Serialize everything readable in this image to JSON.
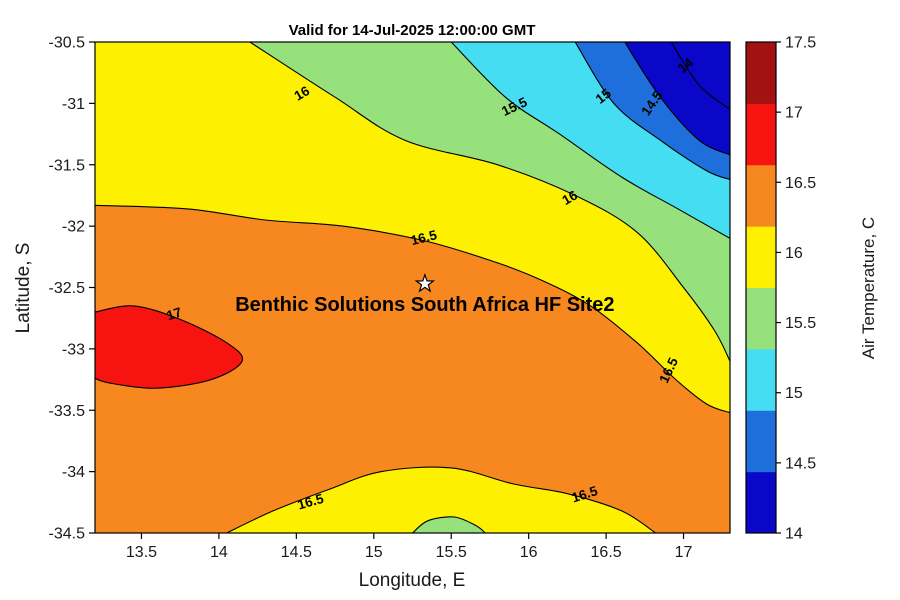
{
  "figure": {
    "title": "Valid for 14-Jul-2025 12:00:00 GMT",
    "xlabel": "Longitude, E",
    "ylabel": "Latitude, S"
  },
  "colorbar": {
    "label": "Air Temperature, C",
    "tick_labels": [
      "14",
      "14.5",
      "15",
      "15.5",
      "16",
      "16.5",
      "17",
      "17.5"
    ],
    "tick_values": [
      14,
      14.5,
      15,
      15.5,
      16,
      16.5,
      17,
      17.5
    ],
    "value_range": [
      14,
      17.5
    ],
    "colors_bottom_to_top": [
      "#0b07c8",
      "#1e6fdc",
      "#45ddf2",
      "#97e17c",
      "#fdf000",
      "#f6881f",
      "#f61310",
      "#a31212"
    ]
  },
  "chart_data": {
    "type": "heatmap",
    "subtype": "filled_contour",
    "title": "Valid for 14-Jul-2025 12:00:00 GMT",
    "xlabel": "Longitude, E",
    "ylabel": "Latitude, S",
    "x_range": [
      13.2,
      17.3
    ],
    "y_range": [
      -34.5,
      -30.5
    ],
    "x_ticks": [
      13.5,
      14,
      14.5,
      15,
      15.5,
      16,
      16.5,
      17
    ],
    "x_tick_labels": [
      "13.5",
      "14",
      "14.5",
      "15",
      "15.5",
      "16",
      "16.5",
      "17"
    ],
    "y_ticks": [
      -30.5,
      -31,
      -31.5,
      -32,
      -32.5,
      -33,
      -33.5,
      -34,
      -34.5
    ],
    "y_tick_labels": [
      "-30.5",
      "-31",
      "-31.5",
      "-32",
      "-32.5",
      "-33",
      "-33.5",
      "-34",
      "-34.5"
    ],
    "levels_c": [
      14,
      14.5,
      15,
      15.5,
      16,
      16.5,
      17,
      17.5
    ],
    "base_color": "#fdf000",
    "site": {
      "name": "Benthic Solutions South Africa HF Site2",
      "lon": 15.33,
      "lat": -32.47
    },
    "regions": [
      {
        "name": "green-upper",
        "level": "16",
        "color": "#97e17c",
        "line": [
          [
            14.2,
            -30.5
          ],
          [
            14.75,
            -30.95
          ],
          [
            15.2,
            -31.3
          ],
          [
            15.8,
            -31.5
          ],
          [
            16.3,
            -31.75
          ],
          [
            16.7,
            -32.05
          ],
          [
            17.0,
            -32.5
          ],
          [
            17.2,
            -32.85
          ],
          [
            17.3,
            -33.1
          ]
        ],
        "closure": [
          [
            17.3,
            -30.5
          ]
        ]
      },
      {
        "name": "cyan-upper",
        "level": "15.5",
        "color": "#45ddf2",
        "line": [
          [
            15.5,
            -30.5
          ],
          [
            15.85,
            -30.95
          ],
          [
            16.2,
            -31.25
          ],
          [
            16.6,
            -31.6
          ],
          [
            16.95,
            -31.85
          ],
          [
            17.3,
            -32.1
          ]
        ],
        "closure": [
          [
            17.3,
            -30.5
          ]
        ]
      },
      {
        "name": "blue-upper",
        "level": "15",
        "color": "#1e6fdc",
        "line": [
          [
            16.3,
            -30.5
          ],
          [
            16.55,
            -31.0
          ],
          [
            16.85,
            -31.3
          ],
          [
            17.15,
            -31.55
          ],
          [
            17.3,
            -31.62
          ]
        ],
        "closure": [
          [
            17.3,
            -30.5
          ]
        ]
      },
      {
        "name": "navy-corner",
        "level": "14.5",
        "color": "#0b07c8",
        "line": [
          [
            16.62,
            -30.5
          ],
          [
            16.85,
            -30.95
          ],
          [
            17.1,
            -31.3
          ],
          [
            17.3,
            -31.42
          ]
        ],
        "closure": [
          [
            17.3,
            -30.5
          ]
        ]
      },
      {
        "name": "orange-main",
        "level": "16.5",
        "color": "#f6881f",
        "line": [
          [
            13.2,
            -31.83
          ],
          [
            13.8,
            -31.86
          ],
          [
            14.3,
            -31.95
          ],
          [
            14.8,
            -32.0
          ],
          [
            15.33,
            -32.12
          ],
          [
            15.8,
            -32.3
          ],
          [
            16.1,
            -32.45
          ],
          [
            16.4,
            -32.65
          ],
          [
            16.7,
            -32.95
          ],
          [
            16.95,
            -33.25
          ],
          [
            17.15,
            -33.45
          ],
          [
            17.3,
            -33.52
          ]
        ],
        "closure": [
          [
            17.3,
            -34.5
          ],
          [
            13.2,
            -34.5
          ]
        ]
      },
      {
        "name": "red-blob",
        "level": "17",
        "color": "#f61310",
        "line": [
          [
            13.2,
            -32.7
          ],
          [
            13.45,
            -32.65
          ],
          [
            13.75,
            -32.76
          ],
          [
            14.05,
            -32.95
          ],
          [
            14.15,
            -33.1
          ],
          [
            13.95,
            -33.25
          ],
          [
            13.6,
            -33.32
          ],
          [
            13.3,
            -33.28
          ],
          [
            13.2,
            -33.24
          ]
        ],
        "closure": []
      },
      {
        "name": "yellow-bottom",
        "level": "16.5",
        "color": "#fdf000",
        "line": [
          [
            14.05,
            -34.5
          ],
          [
            14.35,
            -34.32
          ],
          [
            14.7,
            -34.15
          ],
          [
            15.05,
            -34.0
          ],
          [
            15.5,
            -33.97
          ],
          [
            15.9,
            -34.1
          ],
          [
            16.25,
            -34.18
          ],
          [
            16.6,
            -34.32
          ],
          [
            16.82,
            -34.5
          ]
        ],
        "closure": []
      },
      {
        "name": "green-bottom",
        "level": "16",
        "color": "#97e17c",
        "line": [
          [
            15.25,
            -34.5
          ],
          [
            15.35,
            -34.4
          ],
          [
            15.52,
            -34.37
          ],
          [
            15.66,
            -34.44
          ],
          [
            15.72,
            -34.5
          ]
        ],
        "closure": []
      }
    ],
    "extra_lines": [
      {
        "level": "14",
        "points": [
          [
            16.92,
            -30.5
          ],
          [
            17.1,
            -30.85
          ],
          [
            17.3,
            -31.05
          ]
        ]
      }
    ],
    "contour_labels": [
      {
        "text": "16",
        "lon": 14.55,
        "lat": -30.95,
        "rot": -30
      },
      {
        "text": "15.5",
        "lon": 15.92,
        "lat": -31.06,
        "rot": -25
      },
      {
        "text": "15",
        "lon": 16.5,
        "lat": -30.97,
        "rot": -38
      },
      {
        "text": "14.5",
        "lon": 16.82,
        "lat": -31.02,
        "rot": -55
      },
      {
        "text": "14",
        "lon": 17.03,
        "lat": -30.72,
        "rot": -38
      },
      {
        "text": "16",
        "lon": 16.28,
        "lat": -31.8,
        "rot": -30
      },
      {
        "text": "16.5",
        "lon": 15.33,
        "lat": -32.13,
        "rot": -14
      },
      {
        "text": "17",
        "lon": 13.72,
        "lat": -32.75,
        "rot": -18
      },
      {
        "text": "16.5",
        "lon": 16.93,
        "lat": -33.19,
        "rot": -65
      },
      {
        "text": "16.5",
        "lon": 14.6,
        "lat": -34.28,
        "rot": -16
      },
      {
        "text": "16.5",
        "lon": 16.37,
        "lat": -34.22,
        "rot": -18
      }
    ]
  }
}
